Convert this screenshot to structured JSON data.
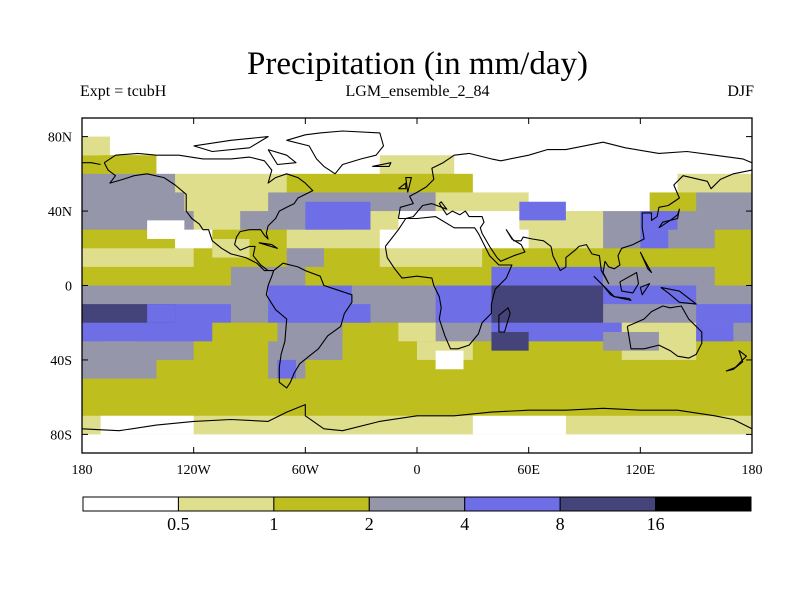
{
  "chart_data": {
    "type": "heatmap",
    "title": "Precipitation (in mm/day)",
    "subtitle_left": "Expt = tcubH",
    "subtitle_center": "LGM_ensemble_2_84",
    "subtitle_right": "DJF",
    "variable": "Precipitation",
    "units": "mm/day",
    "projection": "global lat-lon map",
    "xlim": [
      -180,
      180
    ],
    "ylim": [
      -90,
      90
    ],
    "x_ticks": [
      {
        "value": -180,
        "label": "180"
      },
      {
        "value": -120,
        "label": "120W"
      },
      {
        "value": -60,
        "label": "60W"
      },
      {
        "value": 0,
        "label": "0"
      },
      {
        "value": 60,
        "label": "60E"
      },
      {
        "value": 120,
        "label": "120E"
      },
      {
        "value": 180,
        "label": "180"
      }
    ],
    "y_ticks": [
      {
        "value": 80,
        "label": "80N"
      },
      {
        "value": 40,
        "label": "40N"
      },
      {
        "value": 0,
        "label": "0"
      },
      {
        "value": -40,
        "label": "40S"
      },
      {
        "value": -80,
        "label": "80S"
      }
    ],
    "colorbar": {
      "levels": [
        "0.5",
        "1",
        "2",
        "4",
        "8",
        "16"
      ],
      "colors": [
        "#ffffff",
        "#dede8c",
        "#bebe1e",
        "#9696aa",
        "#6e6ee6",
        "#44447a",
        "#000000"
      ]
    },
    "bands": [
      {
        "lat": 85,
        "lon": [
          -180,
          180
        ],
        "level": 0
      },
      {
        "lat": 75,
        "lon": [
          -180,
          180
        ],
        "level": 0
      },
      {
        "lat": 65,
        "lon": [
          -180,
          -140
        ],
        "level": 2
      },
      {
        "lat": 65,
        "lon": [
          -140,
          -20
        ],
        "level": 0
      },
      {
        "lat": 65,
        "lon": [
          -20,
          20
        ],
        "level": 1
      },
      {
        "lat": 65,
        "lon": [
          20,
          180
        ],
        "level": 0
      },
      {
        "lat": 55,
        "lon": [
          -180,
          -130
        ],
        "level": 3
      },
      {
        "lat": 55,
        "lon": [
          -130,
          -70
        ],
        "level": 1
      },
      {
        "lat": 55,
        "lon": [
          -70,
          -10
        ],
        "level": 2
      },
      {
        "lat": 55,
        "lon": [
          -10,
          30
        ],
        "level": 2
      },
      {
        "lat": 55,
        "lon": [
          30,
          140
        ],
        "level": 0
      },
      {
        "lat": 55,
        "lon": [
          140,
          180
        ],
        "level": 1
      },
      {
        "lat": 45,
        "lon": [
          -180,
          -125
        ],
        "level": 3
      },
      {
        "lat": 45,
        "lon": [
          -125,
          -80
        ],
        "level": 1
      },
      {
        "lat": 45,
        "lon": [
          -80,
          -40
        ],
        "level": 3
      },
      {
        "lat": 45,
        "lon": [
          -40,
          10
        ],
        "level": 3
      },
      {
        "lat": 45,
        "lon": [
          10,
          60
        ],
        "level": 1
      },
      {
        "lat": 45,
        "lon": [
          60,
          125
        ],
        "level": 0
      },
      {
        "lat": 45,
        "lon": [
          125,
          150
        ],
        "level": 2
      },
      {
        "lat": 45,
        "lon": [
          150,
          180
        ],
        "level": 3
      },
      {
        "lat": 35,
        "lon": [
          -180,
          -120
        ],
        "level": 3
      },
      {
        "lat": 35,
        "lon": [
          -120,
          -95
        ],
        "level": 1
      },
      {
        "lat": 35,
        "lon": [
          -95,
          -40
        ],
        "level": 3
      },
      {
        "lat": 35,
        "lon": [
          -40,
          -10
        ],
        "level": 1
      },
      {
        "lat": 35,
        "lon": [
          -10,
          55
        ],
        "level": 0
      },
      {
        "lat": 35,
        "lon": [
          55,
          100
        ],
        "level": 1
      },
      {
        "lat": 35,
        "lon": [
          100,
          130
        ],
        "level": 3
      },
      {
        "lat": 35,
        "lon": [
          130,
          180
        ],
        "level": 3
      },
      {
        "lat": 25,
        "lon": [
          -180,
          -130
        ],
        "level": 2
      },
      {
        "lat": 25,
        "lon": [
          -130,
          -110
        ],
        "level": 0
      },
      {
        "lat": 25,
        "lon": [
          -110,
          -70
        ],
        "level": 2
      },
      {
        "lat": 25,
        "lon": [
          -70,
          -20
        ],
        "level": 1
      },
      {
        "lat": 25,
        "lon": [
          -20,
          60
        ],
        "level": 0
      },
      {
        "lat": 25,
        "lon": [
          60,
          100
        ],
        "level": 1
      },
      {
        "lat": 25,
        "lon": [
          100,
          160
        ],
        "level": 3
      },
      {
        "lat": 25,
        "lon": [
          160,
          180
        ],
        "level": 2
      },
      {
        "lat": 15,
        "lon": [
          -180,
          -120
        ],
        "level": 1
      },
      {
        "lat": 15,
        "lon": [
          -120,
          -80
        ],
        "level": 2
      },
      {
        "lat": 15,
        "lon": [
          -80,
          -20
        ],
        "level": 2
      },
      {
        "lat": 15,
        "lon": [
          -20,
          35
        ],
        "level": 1
      },
      {
        "lat": 15,
        "lon": [
          35,
          110
        ],
        "level": 2
      },
      {
        "lat": 15,
        "lon": [
          110,
          180
        ],
        "level": 2
      },
      {
        "lat": 5,
        "lon": [
          -180,
          -100
        ],
        "level": 2
      },
      {
        "lat": 5,
        "lon": [
          -100,
          -60
        ],
        "level": 3
      },
      {
        "lat": 5,
        "lon": [
          -60,
          -10
        ],
        "level": 2
      },
      {
        "lat": 5,
        "lon": [
          -10,
          40
        ],
        "level": 2
      },
      {
        "lat": 5,
        "lon": [
          40,
          100
        ],
        "level": 4
      },
      {
        "lat": 5,
        "lon": [
          100,
          160
        ],
        "level": 3
      },
      {
        "lat": 5,
        "lon": [
          160,
          180
        ],
        "level": 2
      },
      {
        "lat": -5,
        "lon": [
          -180,
          -100
        ],
        "level": 3
      },
      {
        "lat": -5,
        "lon": [
          -100,
          -80
        ],
        "level": 3
      },
      {
        "lat": -5,
        "lon": [
          -80,
          -35
        ],
        "level": 4
      },
      {
        "lat": -5,
        "lon": [
          -35,
          10
        ],
        "level": 3
      },
      {
        "lat": -5,
        "lon": [
          10,
          40
        ],
        "level": 4
      },
      {
        "lat": -5,
        "lon": [
          40,
          100
        ],
        "level": 5
      },
      {
        "lat": -5,
        "lon": [
          100,
          150
        ],
        "level": 4
      },
      {
        "lat": -5,
        "lon": [
          150,
          180
        ],
        "level": 3
      },
      {
        "lat": -15,
        "lon": [
          -180,
          -130
        ],
        "level": 5
      },
      {
        "lat": -15,
        "lon": [
          -130,
          -100
        ],
        "level": 4
      },
      {
        "lat": -15,
        "lon": [
          -100,
          -80
        ],
        "level": 3
      },
      {
        "lat": -15,
        "lon": [
          -80,
          -40
        ],
        "level": 4
      },
      {
        "lat": -15,
        "lon": [
          -40,
          10
        ],
        "level": 3
      },
      {
        "lat": -15,
        "lon": [
          10,
          40
        ],
        "level": 4
      },
      {
        "lat": -15,
        "lon": [
          40,
          100
        ],
        "level": 5
      },
      {
        "lat": -15,
        "lon": [
          100,
          150
        ],
        "level": 3
      },
      {
        "lat": -15,
        "lon": [
          150,
          180
        ],
        "level": 4
      },
      {
        "lat": -25,
        "lon": [
          -180,
          -110
        ],
        "level": 4
      },
      {
        "lat": -25,
        "lon": [
          -110,
          -75
        ],
        "level": 2
      },
      {
        "lat": -25,
        "lon": [
          -75,
          -40
        ],
        "level": 3
      },
      {
        "lat": -25,
        "lon": [
          -40,
          10
        ],
        "level": 2
      },
      {
        "lat": -25,
        "lon": [
          10,
          40
        ],
        "level": 3
      },
      {
        "lat": -25,
        "lon": [
          40,
          110
        ],
        "level": 4
      },
      {
        "lat": -25,
        "lon": [
          110,
          150
        ],
        "level": 1
      },
      {
        "lat": -25,
        "lon": [
          150,
          180
        ],
        "level": 3
      },
      {
        "lat": -35,
        "lon": [
          -180,
          -120
        ],
        "level": 3
      },
      {
        "lat": -35,
        "lon": [
          -120,
          -80
        ],
        "level": 2
      },
      {
        "lat": -35,
        "lon": [
          -80,
          -40
        ],
        "level": 3
      },
      {
        "lat": -35,
        "lon": [
          -40,
          0
        ],
        "level": 2
      },
      {
        "lat": -35,
        "lon": [
          0,
          30
        ],
        "level": 1
      },
      {
        "lat": -35,
        "lon": [
          30,
          90
        ],
        "level": 2
      },
      {
        "lat": -35,
        "lon": [
          90,
          110
        ],
        "level": 2
      },
      {
        "lat": -35,
        "lon": [
          110,
          150
        ],
        "level": 1
      },
      {
        "lat": -35,
        "lon": [
          150,
          180
        ],
        "level": 2
      },
      {
        "lat": -45,
        "lon": [
          -180,
          -140
        ],
        "level": 3
      },
      {
        "lat": -45,
        "lon": [
          -140,
          -80
        ],
        "level": 2
      },
      {
        "lat": -45,
        "lon": [
          -80,
          -60
        ],
        "level": 3
      },
      {
        "lat": -45,
        "lon": [
          -60,
          180
        ],
        "level": 2
      },
      {
        "lat": -55,
        "lon": [
          -180,
          180
        ],
        "level": 2
      },
      {
        "lat": -65,
        "lon": [
          -180,
          180
        ],
        "level": 2
      },
      {
        "lat": -75,
        "lon": [
          -180,
          180
        ],
        "level": 1
      },
      {
        "lat": -85,
        "lon": [
          -180,
          180
        ],
        "level": 0
      }
    ],
    "patches": [
      {
        "lat": [
          25,
          35
        ],
        "lon": [
          -145,
          -125
        ],
        "level": 0
      },
      {
        "lat": [
          15,
          25
        ],
        "lon": [
          -110,
          -90
        ],
        "level": 1
      },
      {
        "lat": [
          30,
          45
        ],
        "lon": [
          -60,
          -25
        ],
        "level": 4
      },
      {
        "lat": [
          35,
          45
        ],
        "lon": [
          55,
          80
        ],
        "level": 4
      },
      {
        "lat": [
          30,
          40
        ],
        "lon": [
          120,
          140
        ],
        "level": 4
      },
      {
        "lat": [
          -20,
          -10
        ],
        "lon": [
          -40,
          -25
        ],
        "level": 4
      },
      {
        "lat": [
          -20,
          -10
        ],
        "lon": [
          -145,
          -130
        ],
        "level": 4
      },
      {
        "lat": [
          -30,
          -20
        ],
        "lon": [
          150,
          170
        ],
        "level": 4
      },
      {
        "lat": [
          -30,
          -20
        ],
        "lon": [
          -10,
          10
        ],
        "level": 1
      },
      {
        "lat": [
          -35,
          -25
        ],
        "lon": [
          40,
          60
        ],
        "level": 5
      },
      {
        "lat": [
          -35,
          -25
        ],
        "lon": [
          100,
          130
        ],
        "level": 3
      },
      {
        "lat": [
          -40,
          -30
        ],
        "lon": [
          -170,
          -150
        ],
        "level": 3
      },
      {
        "lat": [
          -45,
          -35
        ],
        "lon": [
          10,
          25
        ],
        "level": 0
      },
      {
        "lat": [
          -50,
          -40
        ],
        "lon": [
          -75,
          -65
        ],
        "level": 4
      },
      {
        "lat": [
          10,
          20
        ],
        "lon": [
          -70,
          -50
        ],
        "level": 3
      },
      {
        "lat": [
          -10,
          0
        ],
        "lon": [
          -60,
          -45
        ],
        "level": 4
      },
      {
        "lat": [
          20,
          30
        ],
        "lon": [
          120,
          135
        ],
        "level": 4
      },
      {
        "lat": [
          70,
          80
        ],
        "lon": [
          -180,
          -165
        ],
        "level": 1
      },
      {
        "lat": [
          60,
          70
        ],
        "lon": [
          -170,
          -150
        ],
        "level": 2
      },
      {
        "lat": [
          -80,
          -70
        ],
        "lon": [
          -170,
          -120
        ],
        "level": 0
      },
      {
        "lat": [
          -80,
          -70
        ],
        "lon": [
          30,
          80
        ],
        "level": 0
      }
    ]
  }
}
